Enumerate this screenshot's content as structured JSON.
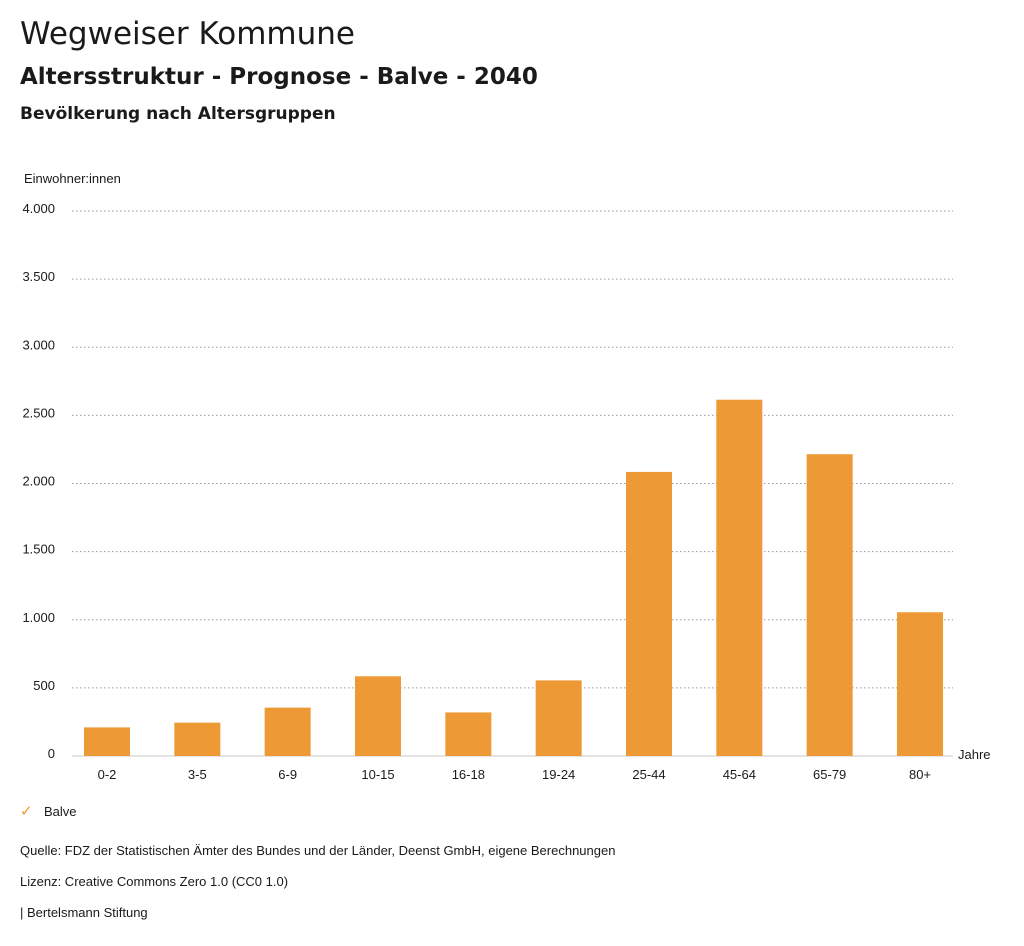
{
  "header": {
    "title": "Wegweiser Kommune",
    "subtitle": "Altersstruktur - Prognose - Balve - 2040",
    "section": "Bevölkerung nach Altersgruppen"
  },
  "chart_data": {
    "type": "bar",
    "ylabel": "Einwohner:innen",
    "xlabel": "Jahre",
    "categories": [
      "0-2",
      "3-5",
      "6-9",
      "10-15",
      "16-18",
      "19-24",
      "25-44",
      "45-64",
      "65-79",
      "80+"
    ],
    "series": [
      {
        "name": "Balve",
        "values": [
          210,
          245,
          355,
          585,
          320,
          555,
          2085,
          2615,
          2215,
          1055
        ],
        "color": "#ed9935"
      }
    ],
    "ylim": [
      0,
      4000
    ],
    "yticks": [
      0,
      500,
      1000,
      1500,
      2000,
      2500,
      3000,
      3500,
      4000
    ],
    "ytick_labels": [
      "0",
      "500",
      "1.000",
      "1.500",
      "2.000",
      "2.500",
      "3.000",
      "3.500",
      "4.000"
    ],
    "grid": true,
    "legend_position": "bottom-left"
  },
  "legend": {
    "label": "Balve",
    "icon": "checkmark-icon"
  },
  "footer": {
    "source": "Quelle: FDZ der Statistischen Ämter des Bundes und der Länder, Deenst GmbH, eigene Berechnungen",
    "license": "Lizenz: Creative Commons Zero 1.0 (CC0 1.0)",
    "publisher": "| Bertelsmann Stiftung"
  }
}
